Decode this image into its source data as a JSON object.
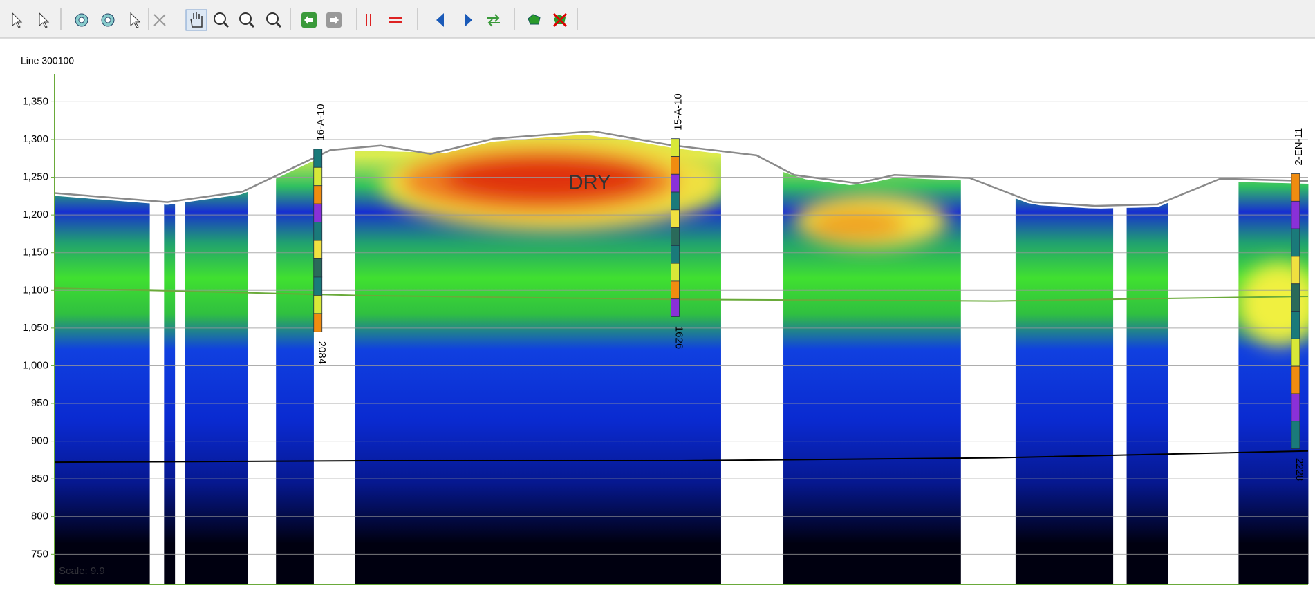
{
  "chart_data": {
    "type": "section",
    "title": "Line 300100",
    "ylim": [
      710,
      1387
    ],
    "xlim": [
      0,
      100
    ],
    "yticks": [
      {
        "value": 750,
        "label": "750"
      },
      {
        "value": 800,
        "label": "800"
      },
      {
        "value": 850,
        "label": "850"
      },
      {
        "value": 900,
        "label": "900"
      },
      {
        "value": 950,
        "label": "950"
      },
      {
        "value": 1000,
        "label": "1,000"
      },
      {
        "value": 1050,
        "label": "1,050"
      },
      {
        "value": 1100,
        "label": "1,100"
      },
      {
        "value": 1150,
        "label": "1,150"
      },
      {
        "value": 1200,
        "label": "1,200"
      },
      {
        "value": 1250,
        "label": "1,250"
      },
      {
        "value": 1300,
        "label": "1,300"
      },
      {
        "value": 1350,
        "label": "1,350"
      }
    ],
    "grid": true,
    "series": [
      {
        "color": "#8a8a8a",
        "x": [
          0,
          9,
          15,
          22,
          26,
          30,
          35,
          43,
          49,
          56,
          59,
          64,
          67,
          73,
          78,
          83,
          88,
          93,
          100
        ],
        "values": [
          1229,
          1217,
          1231,
          1286,
          1292,
          1281,
          1301,
          1311,
          1293,
          1279,
          1253,
          1242,
          1253,
          1249,
          1217,
          1212,
          1214,
          1248,
          1245
        ]
      },
      {
        "color": "#6aaa3a",
        "x": [
          0,
          25,
          50,
          75,
          100
        ],
        "values": [
          1103,
          1093,
          1088,
          1086,
          1092
        ]
      },
      {
        "color": "#000000",
        "x": [
          0,
          25,
          50,
          75,
          100
        ],
        "values": [
          872,
          874,
          874,
          878,
          887
        ]
      }
    ],
    "wells": [
      {
        "name": "16-A-10",
        "depth_label": "2084",
        "x": 21
      },
      {
        "name": "15-A-10",
        "depth_label": "1626",
        "x": 49.5
      },
      {
        "name": "2-EN-11",
        "depth_label": "2228",
        "x": 99
      }
    ],
    "annotations": [
      "DRY",
      "Scale: 9.9"
    ]
  }
}
